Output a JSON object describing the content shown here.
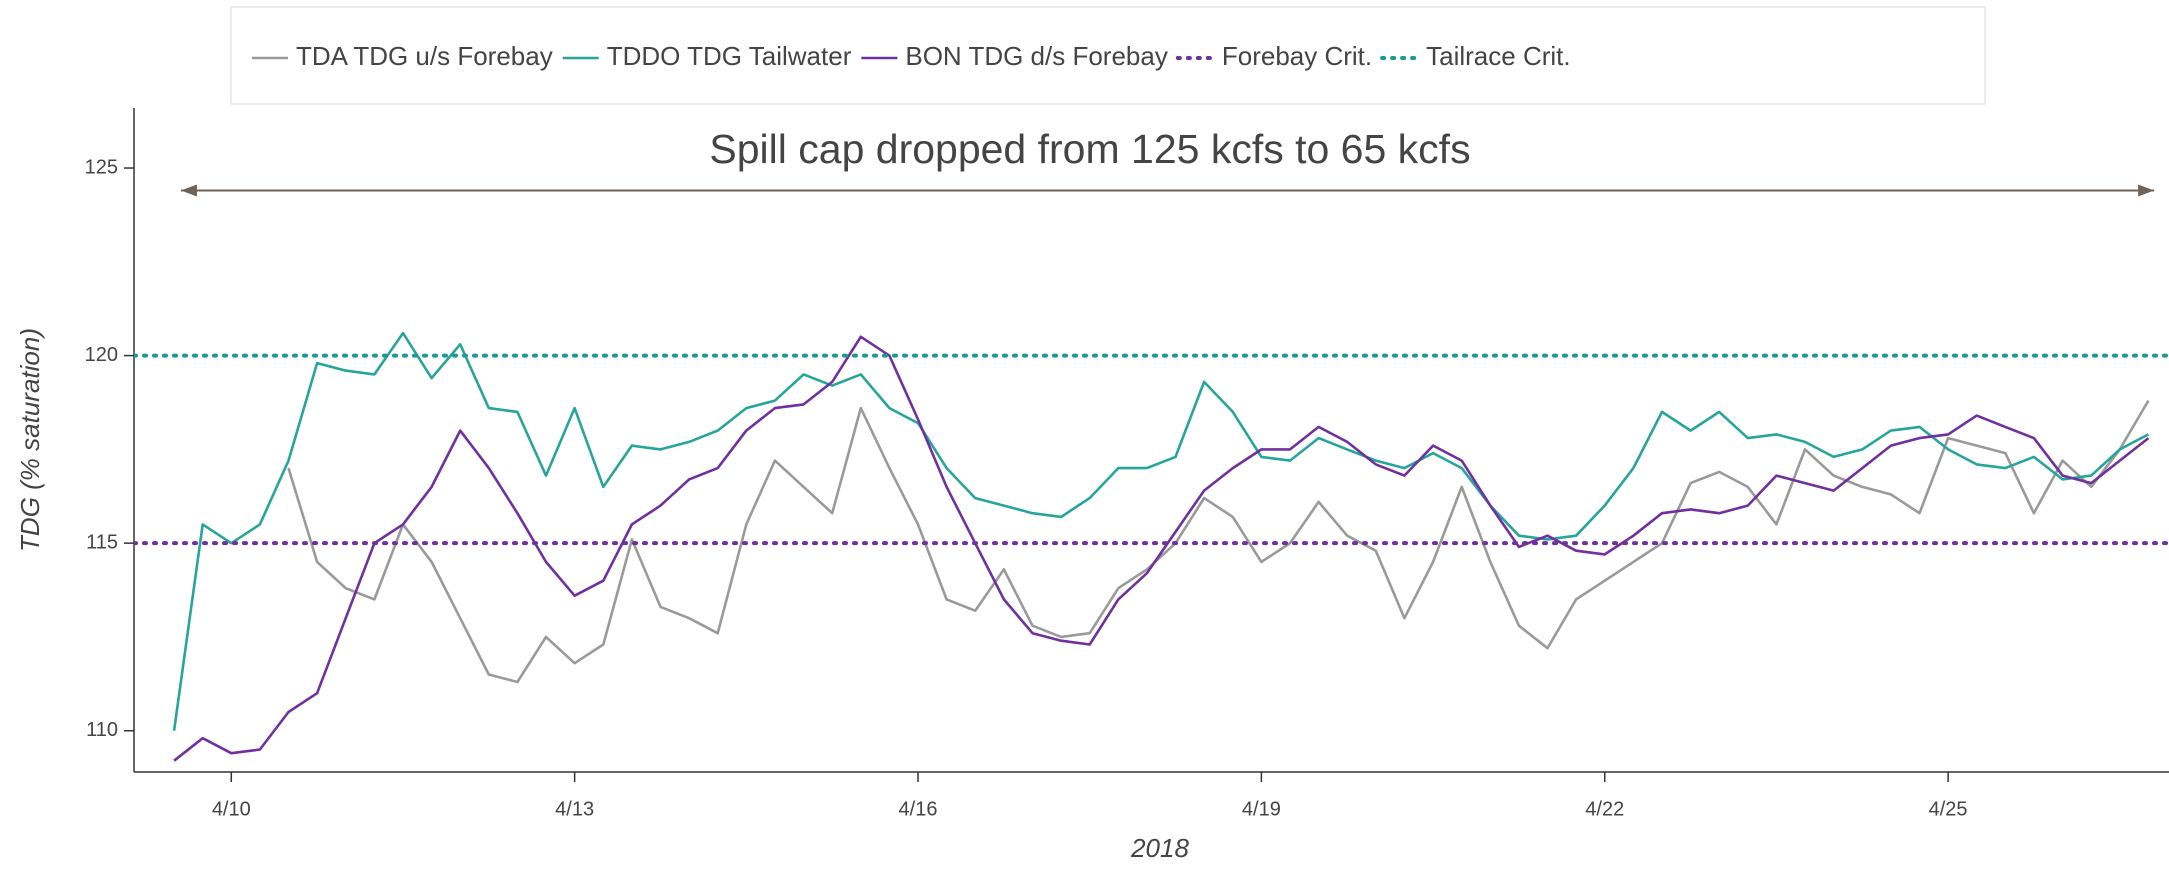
{
  "chart_data": {
    "type": "line",
    "xlabel": "2018",
    "ylabel": "TDG (% saturation)",
    "annotation": {
      "text": "Spill cap dropped from 125 kcfs to 65 kcfs",
      "x_start": 9.56,
      "x_end": 26.8,
      "y": 124.4
    },
    "xlim": [
      9.15,
      26.93
    ],
    "ylim": [
      108.9,
      126.6
    ],
    "xticks": [
      {
        "value": 10,
        "label": "4/10"
      },
      {
        "value": 13,
        "label": "4/13"
      },
      {
        "value": 16,
        "label": "4/16"
      },
      {
        "value": 19,
        "label": "4/19"
      },
      {
        "value": 22,
        "label": "4/22"
      },
      {
        "value": 25,
        "label": "4/25"
      }
    ],
    "yticks": [
      110,
      115,
      120,
      125
    ],
    "x": [
      9.5,
      9.75,
      10,
      10.25,
      10.5,
      10.75,
      11,
      11.25,
      11.5,
      11.75,
      12,
      12.25,
      12.5,
      12.75,
      13,
      13.25,
      13.5,
      13.75,
      14,
      14.25,
      14.5,
      14.75,
      15,
      15.25,
      15.5,
      15.75,
      16,
      16.25,
      16.5,
      16.75,
      17,
      17.25,
      17.5,
      17.75,
      18,
      18.25,
      18.5,
      18.75,
      19,
      19.25,
      19.5,
      19.75,
      20,
      20.25,
      20.5,
      20.75,
      21,
      21.25,
      21.5,
      21.75,
      22,
      22.25,
      22.5,
      22.75,
      23,
      23.25,
      23.5,
      23.75,
      24,
      24.25,
      24.5,
      24.75,
      25,
      25.25,
      25.5,
      25.75,
      26,
      26.25,
      26.5,
      26.75
    ],
    "series": [
      {
        "name": "TDA TDG u/s Forebay",
        "color": "#9a9a9a",
        "values": [
          null,
          null,
          null,
          null,
          117.0,
          114.5,
          113.8,
          113.5,
          115.5,
          114.5,
          113,
          111.5,
          111.3,
          112.5,
          111.8,
          112.3,
          115.1,
          113.3,
          113,
          112.6,
          115.5,
          117.2,
          116.5,
          115.8,
          118.6,
          117,
          115.5,
          113.5,
          113.2,
          114.3,
          112.8,
          112.5,
          112.6,
          113.8,
          114.3,
          115,
          116.2,
          115.7,
          114.5,
          115,
          116.1,
          115.2,
          114.8,
          113,
          114.5,
          116.5,
          114.5,
          112.8,
          112.2,
          113.5,
          114,
          114.5,
          115,
          116.6,
          116.9,
          116.5,
          115.5,
          117.5,
          116.8,
          116.5,
          116.3,
          115.8,
          117.8,
          117.6,
          117.4,
          115.8,
          117.2,
          116.5,
          117.5,
          118.8
        ]
      },
      {
        "name": "TDDO TDG Tailwater",
        "color": "#26a69a",
        "values": [
          110,
          115.5,
          115,
          115.5,
          117.2,
          119.8,
          119.6,
          119.5,
          120.6,
          119.4,
          120.3,
          118.6,
          118.5,
          116.8,
          118.6,
          116.5,
          117.6,
          117.5,
          117.7,
          118,
          118.6,
          118.8,
          119.5,
          119.2,
          119.5,
          118.6,
          118.2,
          117,
          116.2,
          116,
          115.8,
          115.7,
          116.2,
          117,
          117,
          117.3,
          119.3,
          118.5,
          117.3,
          117.2,
          117.8,
          117.5,
          117.2,
          117,
          117.4,
          117,
          116,
          115.2,
          115.1,
          115.2,
          116,
          117,
          118.5,
          118,
          118.5,
          117.8,
          117.9,
          117.7,
          117.3,
          117.5,
          118,
          118.1,
          117.5,
          117.1,
          117,
          117.3,
          116.7,
          116.8,
          117.5,
          117.9
        ]
      },
      {
        "name": "BON TDG d/s Forebay",
        "color": "#7030a0",
        "values": [
          109.2,
          109.8,
          109.4,
          109.5,
          110.5,
          111,
          113,
          115,
          115.5,
          116.5,
          118,
          117,
          115.8,
          114.5,
          113.6,
          114,
          115.5,
          116,
          116.7,
          117,
          118,
          118.6,
          118.7,
          119.3,
          120.5,
          120,
          118.3,
          116.5,
          115,
          113.5,
          112.6,
          112.4,
          112.3,
          113.5,
          114.2,
          115.3,
          116.4,
          117,
          117.5,
          117.5,
          118.1,
          117.7,
          117.1,
          116.8,
          117.6,
          117.2,
          116,
          114.9,
          115.2,
          114.8,
          114.7,
          115.2,
          115.8,
          115.9,
          115.8,
          116,
          116.8,
          116.6,
          116.4,
          117,
          117.6,
          117.8,
          117.9,
          118.4,
          118.1,
          117.8,
          116.8,
          116.6,
          117.2,
          117.8
        ]
      },
      {
        "name": "Forebay Crit.",
        "color": "#7030a0",
        "style": "dotted",
        "y": 115
      },
      {
        "name": "Tailrace Crit.",
        "color": "#1a9a96",
        "style": "dotted",
        "y": 120
      }
    ]
  }
}
